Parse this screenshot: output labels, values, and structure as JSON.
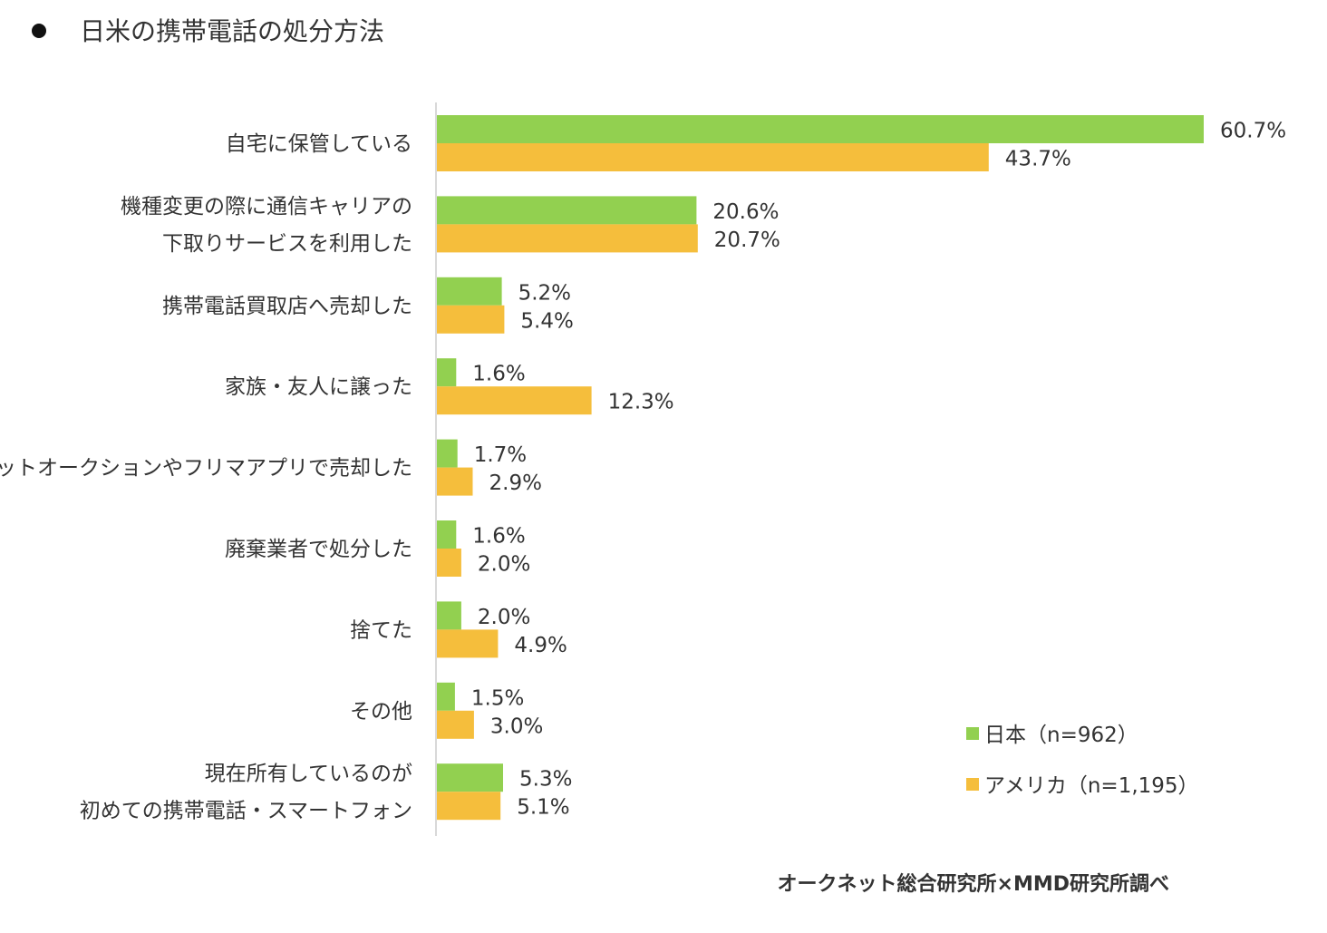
{
  "title": "日米の携帯電話の処分方法",
  "source": "オークネット総合研究所×MMD研究所調べ",
  "colors": {
    "japan": "#92D050",
    "usa": "#F5BE3C",
    "axis": "#D9D9D9",
    "text": "#333333"
  },
  "legend": [
    {
      "label": "日本（n=962）",
      "color": "#92D050"
    },
    {
      "label": "アメリカ（n=1,195）",
      "color": "#F5BE3C"
    }
  ],
  "chart_data": {
    "type": "bar",
    "orientation": "horizontal",
    "title": "日米の携帯電話の処分方法",
    "categories": [
      [
        "自宅に保管している"
      ],
      [
        "機種変更の際に通信キャリアの",
        "下取りサービスを利用した"
      ],
      [
        "携帯電話買取店へ売却した"
      ],
      [
        "家族・友人に譲った"
      ],
      [
        "ネットオークションやフリマアプリで売却した"
      ],
      [
        "廃棄業者で処分した"
      ],
      [
        "捨てた"
      ],
      [
        "その他"
      ],
      [
        "現在所有しているのが",
        "初めての携帯電話・スマートフォン"
      ]
    ],
    "series": [
      {
        "name": "日本（n=962）",
        "color": "#92D050",
        "values": [
          60.7,
          20.6,
          5.2,
          1.6,
          1.7,
          1.6,
          2.0,
          1.5,
          5.3
        ],
        "labels": [
          "60.7%",
          "20.6%",
          "5.2%",
          "1.6%",
          "1.7%",
          "1.6%",
          "2.0%",
          "1.5%",
          "5.3%"
        ]
      },
      {
        "name": "アメリカ（n=1,195）",
        "color": "#F5BE3C",
        "values": [
          43.7,
          20.7,
          5.4,
          12.3,
          2.9,
          2.0,
          4.9,
          3.0,
          5.1
        ],
        "labels": [
          "43.7%",
          "20.7%",
          "5.4%",
          "12.3%",
          "2.9%",
          "2.0%",
          "4.9%",
          "3.0%",
          "5.1%"
        ]
      }
    ],
    "xlim": [
      0,
      60.7
    ],
    "grid": false,
    "legend_position": "bottom-right"
  }
}
